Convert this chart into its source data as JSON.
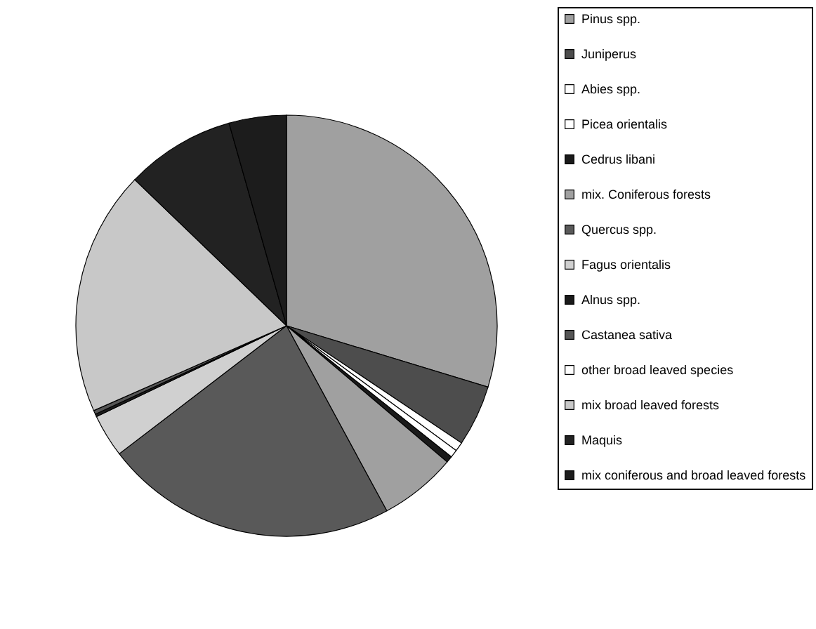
{
  "chart_data": {
    "type": "pie",
    "legend": "right",
    "categories": [
      "Pinus spp.",
      "Juniperus",
      "Abies spp.",
      "Picea orientalis",
      "Cedrus libani",
      "mix. Coniferous forests",
      "Quercus spp.",
      "Fagus orientalis",
      "Alnus spp.",
      "Castanea sativa",
      "other broad leaved species",
      "mix broad leaved forests",
      "Maquis",
      "mix coniferous and broad leaved forests"
    ],
    "values": [
      29.7,
      4.7,
      0.7,
      0.6,
      0.5,
      5.9,
      22.5,
      3.3,
      0.2,
      0.3,
      null,
      18.8,
      8.4,
      4.4
    ],
    "colors": [
      "#a0a0a0",
      "#4d4d4d",
      "#ffffff",
      "#ffffff",
      "#1a1a1a",
      "#a0a0a0",
      "#595959",
      "#d0d0d0",
      "#1a1a1a",
      "#555555",
      "#ffffff",
      "#c8c8c8",
      "#222222",
      "#1c1c1c"
    ]
  }
}
